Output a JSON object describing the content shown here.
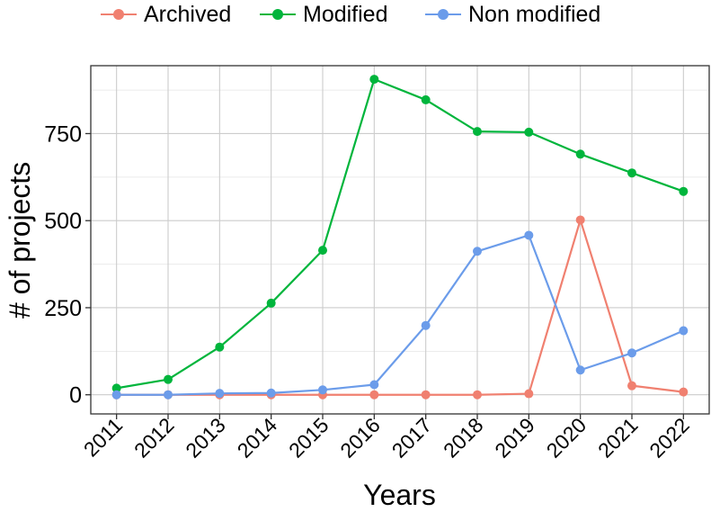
{
  "chart_data": {
    "type": "line",
    "xlabel": "Years",
    "ylabel": "# of projects",
    "categories": [
      "2011",
      "2012",
      "2013",
      "2014",
      "2015",
      "2016",
      "2017",
      "2018",
      "2019",
      "2020",
      "2021",
      "2022"
    ],
    "ylim": [
      -55,
      945
    ],
    "yticks": [
      0,
      250,
      500,
      750
    ],
    "grid": true,
    "legend_position": "top",
    "series": [
      {
        "name": "Archived",
        "color": "#F08070",
        "values": [
          0,
          0,
          0,
          0,
          0,
          0,
          0,
          0,
          3,
          502,
          26,
          8
        ]
      },
      {
        "name": "Modified",
        "color": "#00B53C",
        "values": [
          19,
          44,
          137,
          263,
          415,
          906,
          847,
          756,
          754,
          691,
          637,
          584
        ]
      },
      {
        "name": "Non modified",
        "color": "#6B9CEA",
        "values": [
          0,
          0,
          4,
          5,
          14,
          29,
          199,
          412,
          458,
          71,
          120,
          184
        ]
      }
    ]
  }
}
